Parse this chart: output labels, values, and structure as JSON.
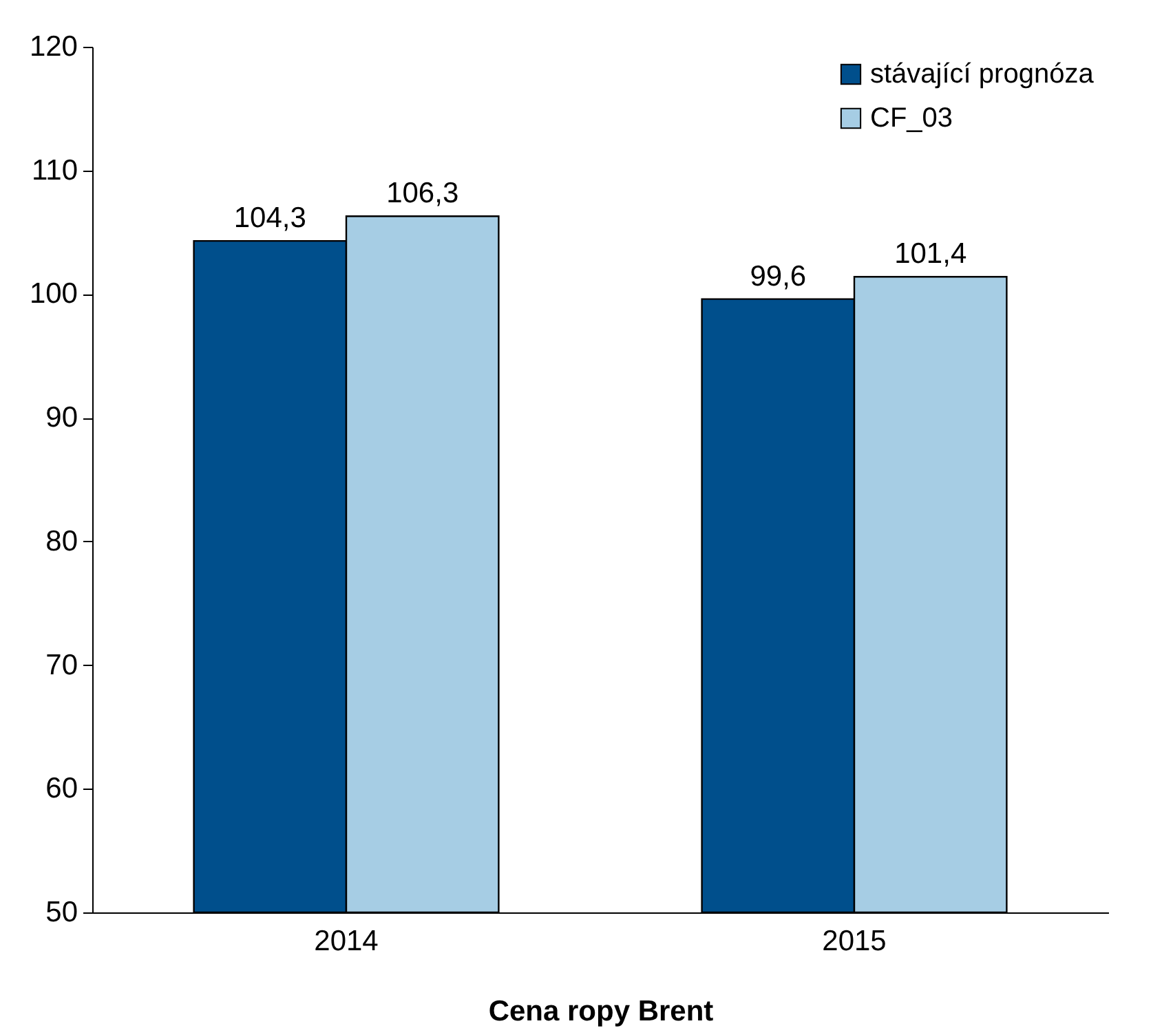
{
  "chart_data": {
    "type": "bar",
    "xlabel": "Cena ropy Brent",
    "categories": [
      "2014",
      "2015"
    ],
    "series": [
      {
        "name": "stávající prognóza",
        "color": "#004f8c",
        "values": [
          104.3,
          99.6
        ],
        "value_labels": [
          "104,3",
          "99,6"
        ]
      },
      {
        "name": "CF_03",
        "color": "#a6cde4",
        "values": [
          106.3,
          101.4
        ],
        "value_labels": [
          "106,3",
          "101,4"
        ]
      }
    ],
    "ylim": [
      50,
      120
    ],
    "yticks": [
      50,
      60,
      70,
      80,
      90,
      100,
      110,
      120
    ],
    "grid": false,
    "legend": "top right"
  }
}
